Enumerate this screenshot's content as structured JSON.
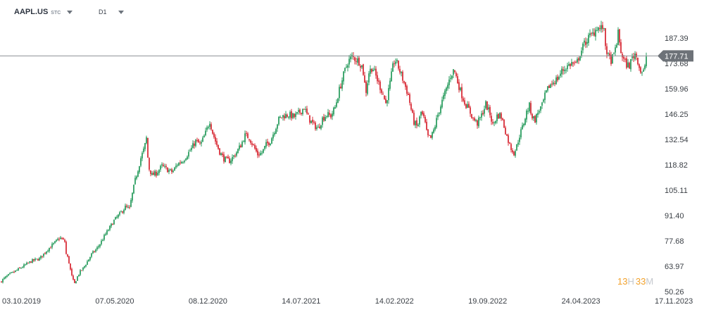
{
  "header": {
    "symbol": "AAPL.US",
    "symbol_tag": "STC",
    "timeframe": "D1"
  },
  "chart_data": {
    "type": "candlestick",
    "instrument": "AAPL.US",
    "timeframe": "D1",
    "colors": {
      "up": "#2e9e62",
      "down": "#d92f3a",
      "price_line": "#8b9096",
      "price_label_bg": "#6d7278",
      "axis_text": "#3a3f45"
    },
    "current_price": "177.71",
    "current_value": 177.71,
    "ylim": [
      50.26,
      201.1
    ],
    "y_ticks": [
      "187.39",
      "173.68",
      "159.96",
      "146.25",
      "132.54",
      "118.82",
      "105.11",
      "91.40",
      "77.68",
      "63.97",
      "50.26"
    ],
    "x_ticks": [
      "03.10.2019",
      "07.05.2020",
      "08.12.2020",
      "14.07.2021",
      "14.02.2022",
      "19.09.2022",
      "24.04.2023",
      "17.11.2023"
    ],
    "price_path": [
      [
        0,
        55.5
      ],
      [
        11,
        58.8
      ],
      [
        22,
        61.3
      ],
      [
        34,
        64.2
      ],
      [
        45,
        66.8
      ],
      [
        56,
        68.0
      ],
      [
        68,
        73.2
      ],
      [
        79,
        77.1
      ],
      [
        85,
        79.5
      ],
      [
        92,
        77.3
      ],
      [
        94,
        70.5
      ],
      [
        97,
        68.0
      ],
      [
        100,
        62.0
      ],
      [
        103,
        56.8
      ],
      [
        106,
        54.5
      ],
      [
        109,
        57.6
      ],
      [
        113,
        60.6
      ],
      [
        118,
        62.8
      ],
      [
        124,
        66.5
      ],
      [
        130,
        70.4
      ],
      [
        137,
        73.2
      ],
      [
        142,
        76.0
      ],
      [
        148,
        80.1
      ],
      [
        155,
        84.3
      ],
      [
        162,
        88.7
      ],
      [
        170,
        92.1
      ],
      [
        178,
        96.0
      ],
      [
        184,
        95.0
      ],
      [
        187,
        101.3
      ],
      [
        192,
        110.5
      ],
      [
        196,
        116.3
      ],
      [
        200,
        122.5
      ],
      [
        205,
        127.8
      ],
      [
        208,
        133.2
      ],
      [
        211,
        117.5
      ],
      [
        216,
        113.2
      ],
      [
        222,
        114.3
      ],
      [
        230,
        118.1
      ],
      [
        238,
        116.1
      ],
      [
        245,
        114.9
      ],
      [
        252,
        119.2
      ],
      [
        260,
        121.2
      ],
      [
        266,
        124.4
      ],
      [
        272,
        127.6
      ],
      [
        278,
        131.7
      ],
      [
        285,
        129.7
      ],
      [
        292,
        136.0
      ],
      [
        298,
        142.6
      ],
      [
        302,
        136.3
      ],
      [
        306,
        131.6
      ],
      [
        312,
        125.8
      ],
      [
        318,
        122.1
      ],
      [
        326,
        120.9
      ],
      [
        334,
        124.4
      ],
      [
        342,
        129.4
      ],
      [
        348,
        134.7
      ],
      [
        354,
        133.5
      ],
      [
        360,
        129.0
      ],
      [
        366,
        124.4
      ],
      [
        372,
        125.3
      ],
      [
        378,
        129.7
      ],
      [
        384,
        131.7
      ],
      [
        390,
        137.5
      ],
      [
        396,
        143.4
      ],
      [
        402,
        145.3
      ],
      [
        410,
        145.9
      ],
      [
        418,
        144.8
      ],
      [
        426,
        147.3
      ],
      [
        432,
        149.9
      ],
      [
        436,
        146.0
      ],
      [
        440,
        143.1
      ],
      [
        446,
        140.2
      ],
      [
        452,
        138.5
      ],
      [
        458,
        143.8
      ],
      [
        464,
        146.0
      ],
      [
        470,
        145.3
      ],
      [
        476,
        149.9
      ],
      [
        482,
        159.3
      ],
      [
        488,
        167.4
      ],
      [
        494,
        174.5
      ],
      [
        500,
        177.2
      ],
      [
        505,
        176.1
      ],
      [
        510,
        174.8
      ],
      [
        515,
        171.6
      ],
      [
        518,
        162.8
      ],
      [
        520,
        158.8
      ],
      [
        524,
        168.8
      ],
      [
        529,
        171.9
      ],
      [
        534,
        166.7
      ],
      [
        538,
        162.8
      ],
      [
        543,
        158.2
      ],
      [
        548,
        152.0
      ],
      [
        553,
        160.7
      ],
      [
        558,
        171.6
      ],
      [
        561,
        176.0
      ],
      [
        565,
        172.5
      ],
      [
        570,
        167.4
      ],
      [
        575,
        162.1
      ],
      [
        580,
        156.4
      ],
      [
        584,
        148.7
      ],
      [
        588,
        141.9
      ],
      [
        593,
        139.1
      ],
      [
        598,
        147.3
      ],
      [
        603,
        143.1
      ],
      [
        607,
        134.1
      ],
      [
        612,
        133.2
      ],
      [
        617,
        138.5
      ],
      [
        622,
        146.0
      ],
      [
        628,
        153.2
      ],
      [
        634,
        159.6
      ],
      [
        640,
        167.0
      ],
      [
        645,
        170.4
      ],
      [
        650,
        163.8
      ],
      [
        655,
        157.6
      ],
      [
        660,
        152.6
      ],
      [
        666,
        148.7
      ],
      [
        672,
        143.8
      ],
      [
        678,
        141.2
      ],
      [
        684,
        145.6
      ],
      [
        690,
        151.7
      ],
      [
        696,
        146.3
      ],
      [
        700,
        140.2
      ],
      [
        706,
        145.3
      ],
      [
        711,
        145.9
      ],
      [
        715,
        141.2
      ],
      [
        720,
        134.1
      ],
      [
        725,
        128.4
      ],
      [
        730,
        125.3
      ],
      [
        733,
        127.6
      ],
      [
        738,
        134.7
      ],
      [
        743,
        140.2
      ],
      [
        748,
        147.3
      ],
      [
        752,
        150.7
      ],
      [
        756,
        145.0
      ],
      [
        760,
        143.1
      ],
      [
        765,
        148.1
      ],
      [
        770,
        150.7
      ],
      [
        774,
        156.0
      ],
      [
        780,
        161.4
      ],
      [
        786,
        163.8
      ],
      [
        792,
        165.4
      ],
      [
        798,
        169.5
      ],
      [
        806,
        172.2
      ],
      [
        812,
        173.8
      ],
      [
        818,
        172.5
      ],
      [
        824,
        179.0
      ],
      [
        830,
        184.3
      ],
      [
        836,
        187.6
      ],
      [
        842,
        189.5
      ],
      [
        848,
        193.4
      ],
      [
        853,
        192.2
      ],
      [
        857,
        193.9
      ],
      [
        860,
        183.5
      ],
      [
        864,
        177.2
      ],
      [
        868,
        175.4
      ],
      [
        872,
        177.9
      ],
      [
        876,
        185.4
      ],
      [
        878,
        189.7
      ],
      [
        882,
        180.0
      ],
      [
        886,
        175.4
      ],
      [
        890,
        173.0
      ],
      [
        894,
        172.5
      ],
      [
        898,
        176.7
      ],
      [
        902,
        179.0
      ],
      [
        906,
        175.4
      ],
      [
        909,
        170.0
      ],
      [
        913,
        168.6
      ],
      [
        916,
        171.1
      ],
      [
        918,
        177.7
      ]
    ],
    "countdown": {
      "hours": "13",
      "hours_unit": "H",
      "minutes": "33",
      "minutes_unit": "M"
    }
  }
}
